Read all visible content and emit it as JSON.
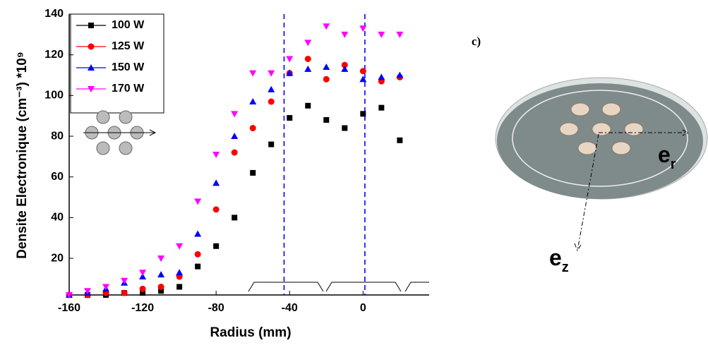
{
  "chart_data": {
    "type": "line",
    "xlabel": "Radius (mm)",
    "ylabel": "Densite Electronique (cm⁻³) *10⁹",
    "x": [
      -160,
      -150,
      -140,
      -130,
      -120,
      -110,
      -100,
      -90,
      -80,
      -70,
      -60,
      -50,
      -40,
      -30,
      -20,
      -10,
      0,
      10,
      20
    ],
    "series": [
      {
        "name": "100 W",
        "color": "#000000",
        "marker": "square",
        "values": [
          2,
          2,
          2,
          3,
          3,
          4,
          6,
          16,
          26,
          40,
          62,
          76,
          89,
          95,
          88,
          84,
          91,
          94,
          78
        ]
      },
      {
        "name": "125 W",
        "color": "#ff0000",
        "marker": "circle",
        "values": [
          2,
          2,
          3,
          3,
          5,
          6,
          11,
          22,
          44,
          72,
          84,
          97,
          111,
          118,
          108,
          115,
          112,
          107,
          109
        ]
      },
      {
        "name": "150 W",
        "color": "#0000ff",
        "marker": "triangle-up",
        "values": [
          2,
          3,
          5,
          8,
          11,
          12,
          13,
          32,
          57,
          80,
          97,
          103,
          111,
          113,
          114,
          113,
          108,
          109,
          110
        ]
      },
      {
        "name": "170 W",
        "color": "#ff00ff",
        "marker": "triangle-down",
        "values": [
          2,
          4,
          6,
          9,
          13,
          20,
          26,
          48,
          71,
          91,
          111,
          111,
          118,
          126,
          134,
          130,
          133,
          130,
          130
        ]
      }
    ],
    "xlim": [
      -160,
      36
    ],
    "xticks": [
      -160,
      -120,
      -80,
      -40,
      0
    ],
    "ylim": [
      2,
      140
    ],
    "yticks": [
      20,
      40,
      60,
      80,
      100,
      120,
      140
    ],
    "vlines": [
      -43,
      1
    ],
    "vline_color": "#0000ff"
  },
  "illustration": {
    "label": "c)",
    "radial_axis": {
      "main": "e",
      "sub": "r"
    },
    "axial_axis": {
      "main": "e",
      "sub": "z"
    }
  }
}
